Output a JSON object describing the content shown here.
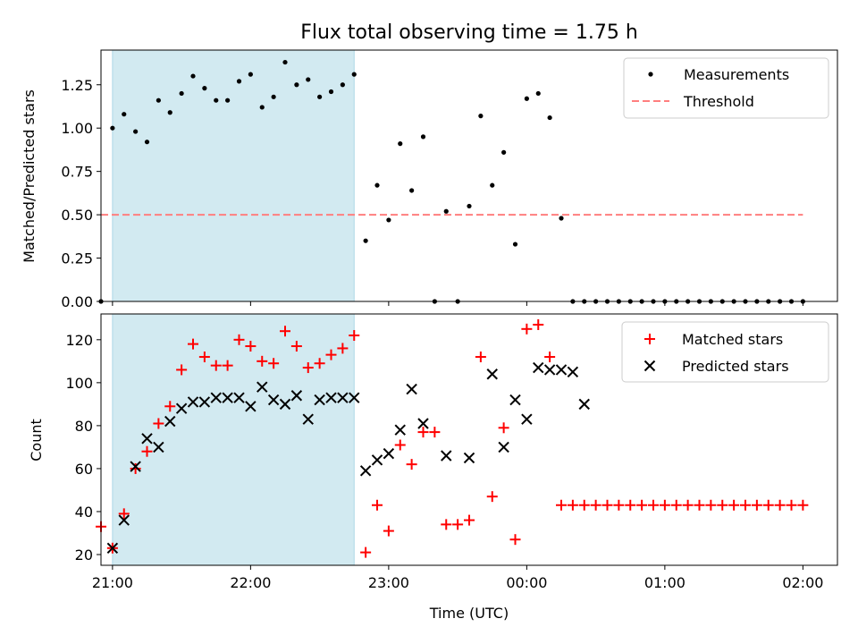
{
  "figure": {
    "title": "Flux total observing time = 1.75 h",
    "xlabel": "Time (UTC)"
  },
  "colors": {
    "band": "#add8e6",
    "measurement": "#000000",
    "threshold": "#ff7f7f",
    "matched": "#ff0000",
    "predicted": "#000000"
  },
  "chart_data": [
    {
      "type": "scatter",
      "title": "Flux total observing time = 1.75 h",
      "xlabel": "",
      "ylabel": "Matched/Predicted stars",
      "xlim": [
        "20:55",
        "02:15"
      ],
      "ylim": [
        0,
        1.45
      ],
      "yticks": [
        0.0,
        0.25,
        0.5,
        0.75,
        1.0,
        1.25
      ],
      "ytick_labels": [
        "0.00",
        "0.25",
        "0.50",
        "0.75",
        "1.00",
        "1.25"
      ],
      "xticks": [
        "21:00",
        "22:00",
        "23:00",
        "00:00",
        "01:00",
        "02:00"
      ],
      "shaded_interval": [
        "21:00",
        "22:45"
      ],
      "legend": {
        "position": "upper right",
        "entries": [
          "Measurements",
          "Threshold"
        ]
      },
      "threshold": {
        "name": "Threshold",
        "y": 0.5,
        "x_range": [
          "20:55",
          "02:00"
        ]
      },
      "series": [
        {
          "name": "Measurements",
          "x": [
            "20:55",
            "21:00",
            "21:05",
            "21:10",
            "21:15",
            "21:20",
            "21:25",
            "21:30",
            "21:35",
            "21:40",
            "21:45",
            "21:50",
            "21:55",
            "22:00",
            "22:05",
            "22:10",
            "22:15",
            "22:20",
            "22:25",
            "22:30",
            "22:35",
            "22:40",
            "22:45",
            "22:50",
            "22:55",
            "23:00",
            "23:05",
            "23:10",
            "23:15",
            "23:20",
            "23:25",
            "23:30",
            "23:35",
            "23:40",
            "23:45",
            "23:50",
            "23:55",
            "00:00",
            "00:05",
            "00:10",
            "00:15",
            "00:20",
            "00:25",
            "00:30",
            "00:35",
            "00:40",
            "00:45",
            "00:50",
            "00:55",
            "01:00",
            "01:05",
            "01:10",
            "01:15",
            "01:20",
            "01:25",
            "01:30",
            "01:35",
            "01:40",
            "01:45",
            "01:50",
            "01:55",
            "02:00"
          ],
          "y": [
            0.0,
            1.0,
            1.08,
            0.98,
            0.92,
            1.16,
            1.09,
            1.2,
            1.3,
            1.23,
            1.16,
            1.16,
            1.27,
            1.31,
            1.12,
            1.18,
            1.38,
            1.25,
            1.28,
            1.18,
            1.21,
            1.25,
            1.31,
            0.35,
            0.67,
            0.47,
            0.91,
            0.64,
            0.95,
            0.0,
            0.52,
            0.0,
            0.55,
            1.07,
            0.67,
            0.86,
            0.33,
            1.17,
            1.2,
            1.06,
            0.48,
            0.0,
            0.0,
            0.0,
            0.0,
            0.0,
            0.0,
            0.0,
            0.0,
            0.0,
            0.0,
            0.0,
            0.0,
            0.0,
            0.0,
            0.0,
            0.0,
            0.0,
            0.0,
            0.0,
            0.0,
            0.0
          ]
        }
      ]
    },
    {
      "type": "scatter",
      "xlabel": "Time (UTC)",
      "ylabel": "Count",
      "xlim": [
        "20:55",
        "02:15"
      ],
      "ylim": [
        15,
        132
      ],
      "yticks": [
        20,
        40,
        60,
        80,
        100,
        120
      ],
      "xticks": [
        "21:00",
        "22:00",
        "23:00",
        "00:00",
        "01:00",
        "02:00"
      ],
      "shaded_interval": [
        "21:00",
        "22:45"
      ],
      "legend": {
        "position": "upper right",
        "entries": [
          "Matched stars",
          "Predicted stars"
        ]
      },
      "series": [
        {
          "name": "Matched stars",
          "x": [
            "20:55",
            "21:00",
            "21:05",
            "21:10",
            "21:15",
            "21:20",
            "21:25",
            "21:30",
            "21:35",
            "21:40",
            "21:45",
            "21:50",
            "21:55",
            "22:00",
            "22:05",
            "22:10",
            "22:15",
            "22:20",
            "22:25",
            "22:30",
            "22:35",
            "22:40",
            "22:45",
            "22:50",
            "22:55",
            "23:00",
            "23:05",
            "23:10",
            "23:15",
            "23:20",
            "23:25",
            "23:30",
            "23:35",
            "23:40",
            "23:45",
            "23:50",
            "23:55",
            "00:00",
            "00:05",
            "00:10",
            "00:15",
            "00:20",
            "00:25",
            "00:30",
            "00:35",
            "00:40",
            "00:45",
            "00:50",
            "00:55",
            "01:00",
            "01:05",
            "01:10",
            "01:15",
            "01:20",
            "01:25",
            "01:30",
            "01:35",
            "01:40",
            "01:45",
            "01:50",
            "01:55",
            "02:00"
          ],
          "y": [
            33,
            23,
            39,
            60,
            68,
            81,
            89,
            106,
            118,
            112,
            108,
            108,
            120,
            117,
            110,
            109,
            124,
            117,
            107,
            109,
            113,
            116,
            122,
            21,
            43,
            31,
            71,
            62,
            77,
            77,
            34,
            34,
            36,
            112,
            47,
            79,
            27,
            125,
            127,
            112,
            43,
            43,
            43,
            43,
            43,
            43,
            43,
            43,
            43,
            43,
            43,
            43,
            43,
            43,
            43,
            43,
            43,
            43,
            43,
            43,
            43,
            43
          ]
        },
        {
          "name": "Predicted stars",
          "x": [
            "21:00",
            "21:05",
            "21:10",
            "21:15",
            "21:20",
            "21:25",
            "21:30",
            "21:35",
            "21:40",
            "21:45",
            "21:50",
            "21:55",
            "22:00",
            "22:05",
            "22:10",
            "22:15",
            "22:20",
            "22:25",
            "22:30",
            "22:35",
            "22:40",
            "22:45",
            "22:50",
            "22:55",
            "23:00",
            "23:05",
            "23:10",
            "23:15",
            "23:20",
            "23:25",
            "23:35",
            "23:45",
            "23:50",
            "23:55",
            "00:00",
            "00:05",
            "00:10",
            "00:15",
            "00:20",
            "00:25"
          ],
          "y": [
            23,
            36,
            61,
            74,
            70,
            82,
            88,
            91,
            91,
            93,
            93,
            93,
            89,
            98,
            92,
            90,
            94,
            83,
            92,
            93,
            93,
            93,
            59,
            64,
            67,
            78,
            97,
            81,
            null,
            66,
            65,
            104,
            70,
            92,
            83,
            107,
            106,
            106,
            105,
            90
          ]
        }
      ]
    }
  ]
}
